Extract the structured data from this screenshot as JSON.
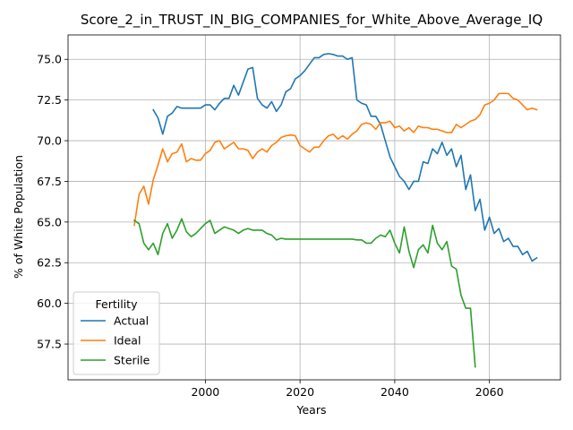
{
  "chart_data": {
    "type": "line",
    "title": "Score_2_in_TRUST_IN_BIG_COMPANIES_for_White_Above_Average_IQ",
    "xlabel": "Years",
    "ylabel": "% of White Population",
    "xlim": [
      1971,
      2075
    ],
    "ylim": [
      55.3,
      76.5
    ],
    "xticks": [
      2000,
      2020,
      2040,
      2060
    ],
    "yticks": [
      57.5,
      60.0,
      62.5,
      65.0,
      67.5,
      70.0,
      72.5,
      75.0
    ],
    "grid": true,
    "legend": {
      "title": "Fertility",
      "position": "lower-left"
    },
    "series": [
      {
        "name": "Actual",
        "color": "#1f77b4",
        "x": [
          1989,
          1990,
          1991,
          1992,
          1993,
          1994,
          1995,
          1996,
          1997,
          1998,
          1999,
          2000,
          2001,
          2002,
          2003,
          2004,
          2005,
          2006,
          2007,
          2008,
          2009,
          2010,
          2011,
          2012,
          2013,
          2014,
          2015,
          2016,
          2017,
          2018,
          2019,
          2020,
          2021,
          2022,
          2023,
          2024,
          2025,
          2026,
          2027,
          2028,
          2029,
          2030,
          2031,
          2032,
          2033,
          2034,
          2035,
          2036,
          2037,
          2038,
          2039,
          2040,
          2041,
          2042,
          2043,
          2044,
          2045,
          2046,
          2047,
          2048,
          2049,
          2050,
          2051,
          2052,
          2053,
          2054,
          2055,
          2056,
          2057,
          2058,
          2059,
          2060,
          2061,
          2062,
          2063,
          2064,
          2065,
          2066,
          2067,
          2068,
          2069,
          2070
        ],
        "values": [
          71.9,
          71.4,
          70.4,
          71.5,
          71.7,
          72.1,
          72.0,
          72.0,
          72.0,
          72.0,
          72.0,
          72.2,
          72.2,
          71.9,
          72.3,
          72.6,
          72.6,
          73.4,
          72.8,
          73.6,
          74.4,
          74.5,
          72.6,
          72.2,
          72.0,
          72.4,
          71.8,
          72.2,
          73.0,
          73.2,
          73.8,
          74.0,
          74.3,
          74.7,
          75.1,
          75.1,
          75.3,
          75.35,
          75.3,
          75.2,
          75.2,
          75.0,
          75.1,
          72.5,
          72.3,
          72.2,
          71.5,
          71.5,
          71.0,
          70.0,
          69.0,
          68.4,
          67.8,
          67.5,
          67.0,
          67.5,
          67.5,
          68.7,
          68.6,
          69.5,
          69.2,
          69.9,
          69.1,
          69.5,
          68.4,
          69.1,
          67.0,
          67.9,
          65.7,
          66.4,
          64.5,
          65.3,
          64.3,
          64.6,
          63.8,
          64.0,
          63.5,
          63.5,
          63.0,
          63.2,
          62.6,
          62.8
        ]
      },
      {
        "name": "Ideal",
        "color": "#ff7f0e",
        "x": [
          1985,
          1986,
          1987,
          1988,
          1989,
          1990,
          1991,
          1992,
          1993,
          1994,
          1995,
          1996,
          1997,
          1998,
          1999,
          2000,
          2001,
          2002,
          2003,
          2004,
          2005,
          2006,
          2007,
          2008,
          2009,
          2010,
          2011,
          2012,
          2013,
          2014,
          2015,
          2016,
          2017,
          2018,
          2019,
          2020,
          2021,
          2022,
          2023,
          2024,
          2025,
          2026,
          2027,
          2028,
          2029,
          2030,
          2031,
          2032,
          2033,
          2034,
          2035,
          2036,
          2037,
          2038,
          2039,
          2040,
          2041,
          2042,
          2043,
          2044,
          2045,
          2046,
          2047,
          2048,
          2049,
          2050,
          2051,
          2052,
          2053,
          2054,
          2055,
          2056,
          2057,
          2058,
          2059,
          2060,
          2061,
          2062,
          2063,
          2064,
          2065,
          2066,
          2067,
          2068,
          2069,
          2070
        ],
        "values": [
          64.8,
          66.7,
          67.2,
          66.1,
          67.6,
          68.5,
          69.5,
          68.7,
          69.2,
          69.3,
          69.8,
          68.7,
          68.9,
          68.8,
          68.8,
          69.2,
          69.4,
          69.9,
          70.0,
          69.5,
          69.7,
          69.9,
          69.5,
          69.5,
          69.4,
          68.9,
          69.3,
          69.5,
          69.3,
          69.7,
          69.9,
          70.2,
          70.3,
          70.35,
          70.3,
          69.7,
          69.5,
          69.3,
          69.6,
          69.6,
          70.0,
          70.3,
          70.4,
          70.1,
          70.3,
          70.1,
          70.4,
          70.6,
          71.0,
          71.1,
          71.0,
          70.7,
          71.1,
          71.1,
          71.2,
          70.8,
          70.9,
          70.6,
          70.8,
          70.5,
          70.9,
          70.8,
          70.8,
          70.7,
          70.7,
          70.6,
          70.5,
          70.5,
          71.0,
          70.8,
          71.0,
          71.2,
          71.3,
          71.6,
          72.2,
          72.3,
          72.5,
          72.9,
          72.9,
          72.9,
          72.6,
          72.5,
          72.2,
          71.9,
          72.0,
          71.9
        ]
      },
      {
        "name": "Sterile",
        "color": "#2ca02c",
        "x": [
          1985,
          1986,
          1987,
          1988,
          1989,
          1990,
          1991,
          1992,
          1993,
          1994,
          1995,
          1996,
          1997,
          1998,
          1999,
          2000,
          2001,
          2002,
          2003,
          2004,
          2005,
          2006,
          2007,
          2008,
          2009,
          2010,
          2011,
          2012,
          2013,
          2014,
          2015,
          2016,
          2017,
          2018,
          2019,
          2020,
          2021,
          2022,
          2023,
          2024,
          2025,
          2026,
          2027,
          2028,
          2029,
          2030,
          2031,
          2032,
          2033,
          2034,
          2035,
          2036,
          2037,
          2038,
          2039,
          2040,
          2041,
          2042,
          2043,
          2044,
          2045,
          2046,
          2047,
          2048,
          2049,
          2050,
          2051,
          2052,
          2053,
          2054,
          2055,
          2056,
          2057
        ],
        "values": [
          65.1,
          64.9,
          63.7,
          63.3,
          63.7,
          63.0,
          64.3,
          64.9,
          64.0,
          64.5,
          65.2,
          64.4,
          64.1,
          64.3,
          64.6,
          64.9,
          65.1,
          64.3,
          64.5,
          64.7,
          64.6,
          64.5,
          64.3,
          64.5,
          64.6,
          64.5,
          64.5,
          64.5,
          64.3,
          64.2,
          63.9,
          64.0,
          63.95,
          63.95,
          63.95,
          63.95,
          63.95,
          63.95,
          63.95,
          63.95,
          63.95,
          63.95,
          63.95,
          63.95,
          63.95,
          63.95,
          63.95,
          63.9,
          63.9,
          63.7,
          63.7,
          64.0,
          64.2,
          64.1,
          64.5,
          63.7,
          63.1,
          64.7,
          63.2,
          62.2,
          63.3,
          63.6,
          63.1,
          64.8,
          63.7,
          63.3,
          63.8,
          62.3,
          62.1,
          60.5,
          59.7,
          59.7,
          56.1
        ]
      }
    ]
  }
}
